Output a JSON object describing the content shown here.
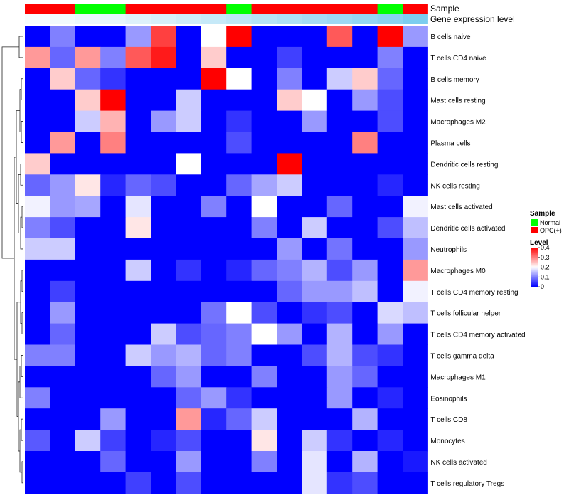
{
  "chart_data": {
    "type": "heatmap",
    "annotations": {
      "sample_row_label": "Sample",
      "level_row_label": "Gene expression level",
      "sample_groups": [
        "OPC(+)",
        "OPC(+)",
        "Normal",
        "Normal",
        "OPC(+)",
        "OPC(+)",
        "OPC(+)",
        "OPC(+)",
        "Normal",
        "OPC(+)",
        "OPC(+)",
        "OPC(+)",
        "OPC(+)",
        "OPC(+)",
        "Normal",
        "OPC(+)"
      ],
      "expression_levels": [
        0.05,
        0.08,
        0.12,
        0.15,
        0.2,
        0.25,
        0.3,
        0.35,
        0.4,
        0.45,
        0.5,
        0.55,
        0.6,
        0.65,
        0.72,
        0.8
      ],
      "level_colors": [
        "#ffffff",
        "#5bc0eb"
      ]
    },
    "rows": [
      "B cells naive",
      "T cells CD4 naive",
      "B cells memory",
      "Mast cells resting",
      "Macrophages M2",
      "Plasma cells",
      "Dendritic cells resting",
      "NK cells resting",
      "Mast cells activated",
      "Dendritic cells activated",
      "Neutrophils",
      "Macrophages M0",
      "T cells CD4 memory resting",
      "T cells follicular helper",
      "T cells CD4 memory activated",
      "T cells gamma delta",
      "Macrophages M1",
      "Eosinophils",
      "T cells CD8",
      "Monocytes",
      "NK cells activated",
      "T cells regulatory  Tregs"
    ],
    "values": [
      [
        0.0,
        0.1,
        0.0,
        0.0,
        0.12,
        0.35,
        0.0,
        0.2,
        0.4,
        0.0,
        0.0,
        0.0,
        0.33,
        0.0,
        0.4,
        0.12
      ],
      [
        0.28,
        0.08,
        0.28,
        0.1,
        0.33,
        0.38,
        0.0,
        0.24,
        0.0,
        0.0,
        0.05,
        0.0,
        0.0,
        0.0,
        0.1,
        0.0
      ],
      [
        0.0,
        0.24,
        0.08,
        0.04,
        0.0,
        0.0,
        0.0,
        0.4,
        0.2,
        0.0,
        0.1,
        0.0,
        0.16,
        0.24,
        0.08,
        0.0
      ],
      [
        0.0,
        0.0,
        0.24,
        0.4,
        0.0,
        0.0,
        0.16,
        0.0,
        0.0,
        0.0,
        0.24,
        0.2,
        0.0,
        0.12,
        0.06,
        0.0
      ],
      [
        0.0,
        0.0,
        0.16,
        0.26,
        0.0,
        0.12,
        0.16,
        0.0,
        0.04,
        0.0,
        0.0,
        0.12,
        0.0,
        0.0,
        0.06,
        0.0
      ],
      [
        0.0,
        0.28,
        0.0,
        0.3,
        0.0,
        0.0,
        0.0,
        0.0,
        0.06,
        0.0,
        0.0,
        0.0,
        0.0,
        0.3,
        0.0,
        0.0
      ],
      [
        0.24,
        0.0,
        0.0,
        0.0,
        0.0,
        0.0,
        0.2,
        0.0,
        0.0,
        0.0,
        0.4,
        0.0,
        0.0,
        0.0,
        0.0,
        0.0
      ],
      [
        0.08,
        0.12,
        0.22,
        0.03,
        0.08,
        0.06,
        0.0,
        0.0,
        0.08,
        0.13,
        0.16,
        0.0,
        0.0,
        0.0,
        0.03,
        0.0
      ],
      [
        0.19,
        0.12,
        0.13,
        0.0,
        0.18,
        0.0,
        0.0,
        0.1,
        0.0,
        0.2,
        0.0,
        0.0,
        0.08,
        0.0,
        0.0,
        0.19
      ],
      [
        0.1,
        0.06,
        0.0,
        0.0,
        0.22,
        0.0,
        0.0,
        0.0,
        0.0,
        0.1,
        0.0,
        0.16,
        0.0,
        0.0,
        0.06,
        0.15
      ],
      [
        0.16,
        0.16,
        0.0,
        0.0,
        0.0,
        0.0,
        0.0,
        0.0,
        0.0,
        0.0,
        0.12,
        0.0,
        0.09,
        0.0,
        0.0,
        0.12
      ],
      [
        0.0,
        0.0,
        0.0,
        0.0,
        0.16,
        0.0,
        0.04,
        0.0,
        0.03,
        0.08,
        0.1,
        0.14,
        0.06,
        0.12,
        0.0,
        0.28
      ],
      [
        0.0,
        0.05,
        0.0,
        0.0,
        0.0,
        0.0,
        0.0,
        0.0,
        0.0,
        0.0,
        0.08,
        0.12,
        0.12,
        0.15,
        0.0,
        0.19
      ],
      [
        0.0,
        0.12,
        0.0,
        0.0,
        0.0,
        0.0,
        0.0,
        0.09,
        0.2,
        0.06,
        0.0,
        0.04,
        0.06,
        0.0,
        0.17,
        0.15
      ],
      [
        0.0,
        0.08,
        0.0,
        0.0,
        0.0,
        0.16,
        0.06,
        0.08,
        0.1,
        0.2,
        0.12,
        0.0,
        0.14,
        0.0,
        0.12,
        0.0
      ],
      [
        0.1,
        0.1,
        0.0,
        0.0,
        0.16,
        0.12,
        0.14,
        0.08,
        0.1,
        0.0,
        0.0,
        0.06,
        0.14,
        0.06,
        0.04,
        0.0
      ],
      [
        0.0,
        0.0,
        0.0,
        0.0,
        0.0,
        0.08,
        0.12,
        0.0,
        0.0,
        0.1,
        0.0,
        0.0,
        0.12,
        0.08,
        0.0,
        0.0
      ],
      [
        0.1,
        0.0,
        0.0,
        0.0,
        0.0,
        0.0,
        0.08,
        0.12,
        0.04,
        0.0,
        0.0,
        0.0,
        0.12,
        0.0,
        0.03,
        0.0
      ],
      [
        0.0,
        0.0,
        0.0,
        0.12,
        0.0,
        0.0,
        0.28,
        0.03,
        0.08,
        0.16,
        0.0,
        0.0,
        0.0,
        0.14,
        0.0,
        0.0
      ],
      [
        0.07,
        0.0,
        0.16,
        0.05,
        0.0,
        0.03,
        0.06,
        0.0,
        0.0,
        0.22,
        0.0,
        0.16,
        0.04,
        0.0,
        0.03,
        0.0
      ],
      [
        0.0,
        0.0,
        0.0,
        0.08,
        0.0,
        0.0,
        0.12,
        0.0,
        0.0,
        0.1,
        0.0,
        0.18,
        0.0,
        0.14,
        0.0,
        0.02
      ],
      [
        0.0,
        0.0,
        0.0,
        0.0,
        0.05,
        0.0,
        0.06,
        0.0,
        0.0,
        0.0,
        0.0,
        0.18,
        0.04,
        0.06,
        0.0,
        0.0
      ]
    ],
    "color_scale": {
      "min": 0,
      "max": 0.4,
      "low_color": "#0000ff",
      "mid_color": "#ffffff",
      "high_color": "#ff0000",
      "mid_value": 0.2
    },
    "legend": {
      "sample_title": "Sample",
      "sample_items": [
        {
          "label": "Normal",
          "color": "#00ff00"
        },
        {
          "label": "OPC(+)",
          "color": "#ff0000"
        }
      ],
      "level_title": "Level",
      "level_ticks": [
        "0.4",
        "0.3",
        "0.2",
        "0.1",
        "0"
      ],
      "level_tick_values": [
        0.4,
        0.3,
        0.2,
        0.1,
        0
      ]
    }
  }
}
